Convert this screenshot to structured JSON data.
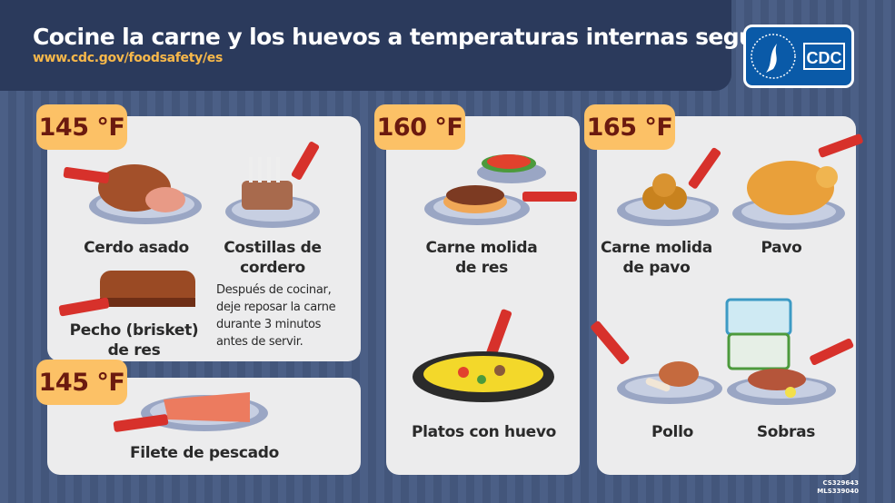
{
  "header": {
    "title": "Cocine la carne y los huevos a temperaturas internas seguras",
    "url": "www.cdc.gov/foodsafety/es",
    "logo_text": "CDC"
  },
  "colors": {
    "header": "#2b3a5c",
    "badge": "#fcc166",
    "badge_text": "#6b1a0f",
    "url": "#f7b84a",
    "logo": "#0a5aa8"
  },
  "cards": [
    {
      "temperature": "145 °F",
      "items": [
        {
          "label": "Cerdo asado",
          "icon": "roast-pork-icon"
        },
        {
          "label_1": "Costillas de",
          "label_2": "cordero",
          "icon": "lamb-ribs-icon"
        },
        {
          "label_1": "Pecho (brisket)",
          "label_2": "de res",
          "icon": "brisket-icon"
        }
      ],
      "note": [
        "Después de cocinar,",
        "deje reposar la carne",
        "durante 3 minutos",
        "antes de servir."
      ]
    },
    {
      "temperature": "145 °F",
      "items": [
        {
          "label": "Filete de pescado",
          "icon": "fish-fillet-icon"
        }
      ]
    },
    {
      "temperature": "160 °F",
      "items": [
        {
          "label_1": "Carne molida",
          "label_2": "de res",
          "icon": "burger-icon"
        },
        {
          "label": "Platos con huevo",
          "icon": "egg-dish-icon"
        }
      ]
    },
    {
      "temperature": "165 °F",
      "items": [
        {
          "label_1": "Carne molida",
          "label_2": "de pavo",
          "icon": "turkey-meatballs-icon"
        },
        {
          "label": "Pavo",
          "icon": "roast-turkey-icon"
        },
        {
          "label": "Pollo",
          "icon": "chicken-leg-icon"
        },
        {
          "label": "Sobras",
          "icon": "leftovers-icon"
        }
      ]
    }
  ],
  "footer": {
    "code_1": "CS329643",
    "code_2": "MLS339040"
  }
}
